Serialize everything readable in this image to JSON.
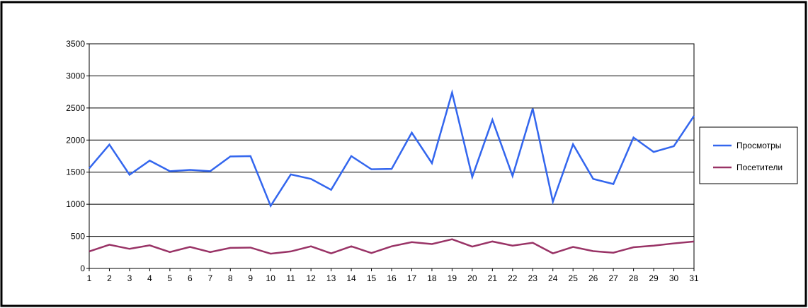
{
  "chart_data": {
    "type": "line",
    "title": "",
    "xlabel": "",
    "ylabel": "",
    "x": [
      1,
      2,
      3,
      4,
      5,
      6,
      7,
      8,
      9,
      10,
      11,
      12,
      13,
      14,
      15,
      16,
      17,
      18,
      19,
      20,
      21,
      22,
      23,
      24,
      25,
      26,
      27,
      28,
      29,
      30,
      31
    ],
    "ylim": [
      0,
      3500
    ],
    "yticks": [
      0,
      500,
      1000,
      1500,
      2000,
      2500,
      3000,
      3500
    ],
    "grid": true,
    "legend_position": "right",
    "series": [
      {
        "name": "Просмотры",
        "color": "#3366ee",
        "values": [
          1560,
          1930,
          1460,
          1680,
          1515,
          1535,
          1515,
          1745,
          1750,
          975,
          1465,
          1395,
          1225,
          1750,
          1545,
          1550,
          2115,
          1640,
          2740,
          1425,
          2315,
          1440,
          2490,
          1040,
          1935,
          1395,
          1315,
          2040,
          1815,
          1905,
          2375
        ]
      },
      {
        "name": "Посетители",
        "color": "#993366",
        "values": [
          265,
          370,
          305,
          360,
          255,
          335,
          255,
          320,
          325,
          230,
          265,
          345,
          235,
          345,
          240,
          345,
          410,
          380,
          455,
          340,
          420,
          355,
          400,
          235,
          335,
          270,
          245,
          330,
          355,
          390,
          420
        ]
      }
    ]
  }
}
